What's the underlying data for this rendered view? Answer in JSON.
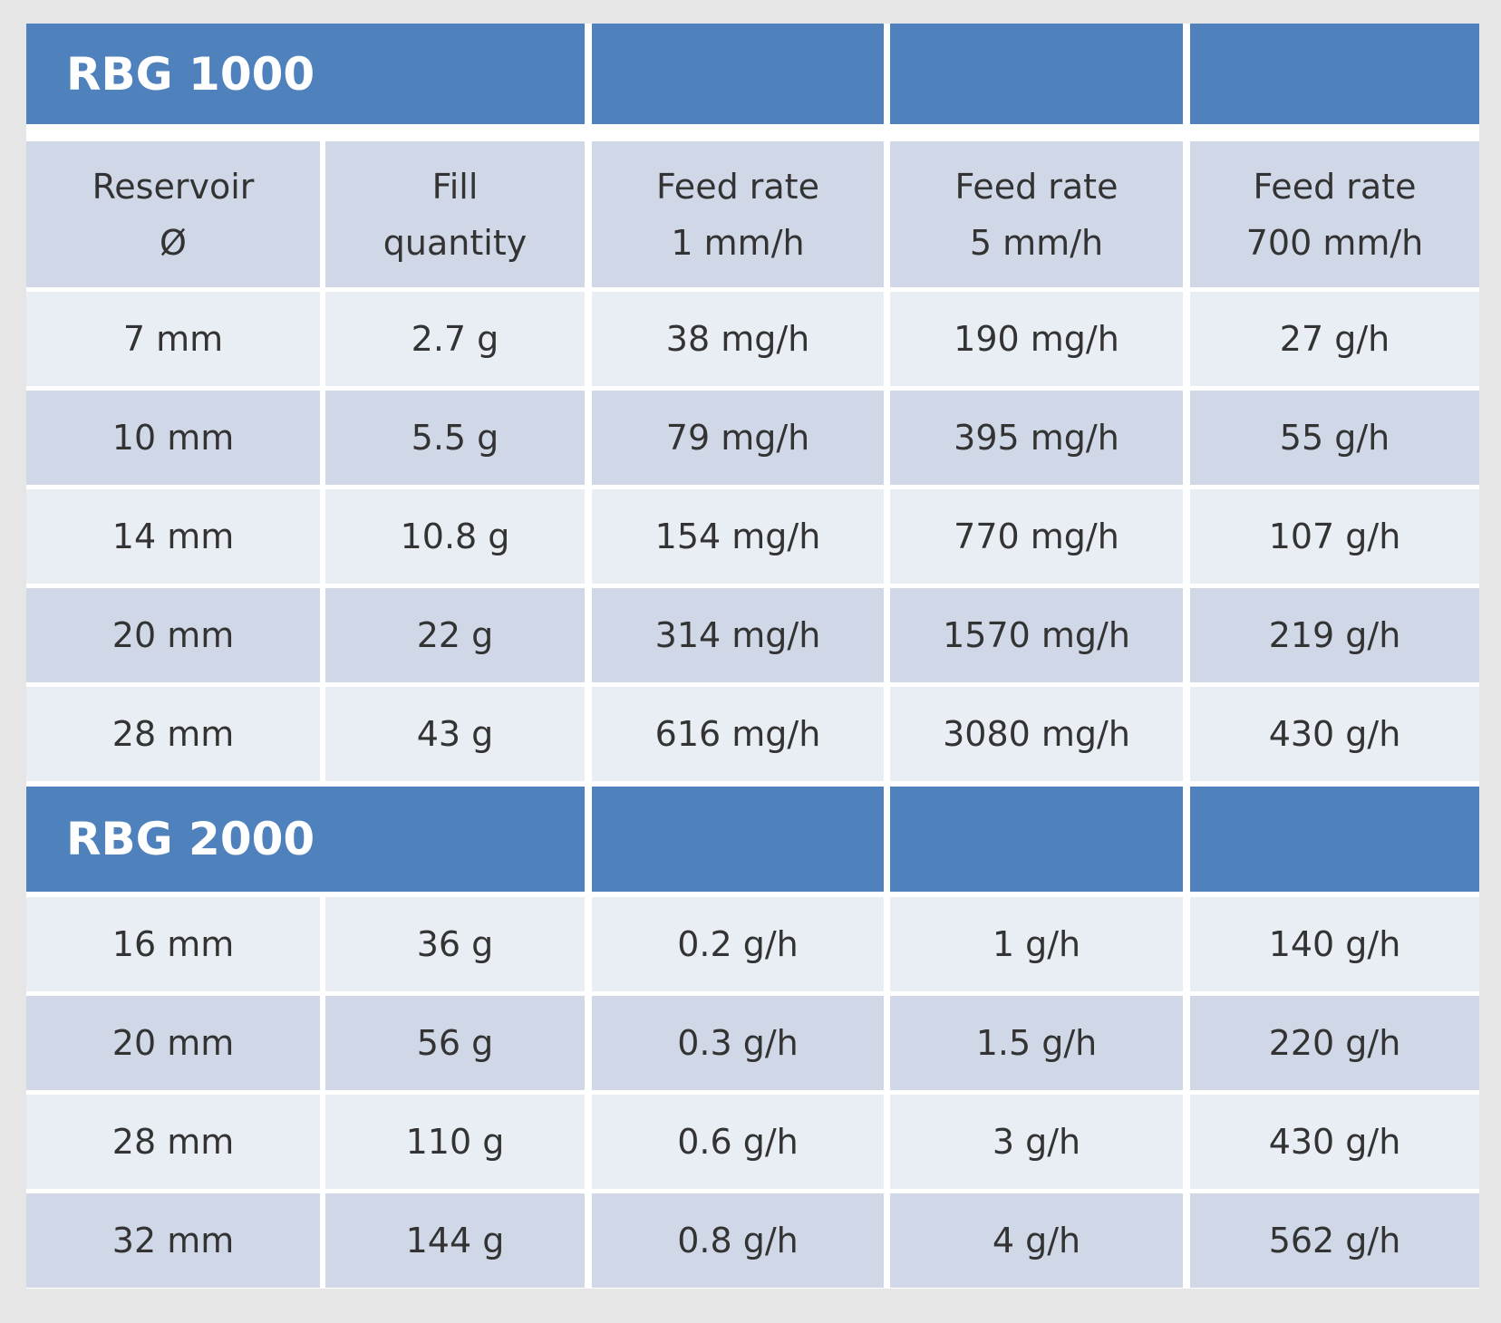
{
  "table": {
    "column_headers": [
      [
        "Reservoir",
        "Ø"
      ],
      [
        "Fill",
        "quantity"
      ],
      [
        "Feed rate",
        "1 mm/h"
      ],
      [
        "Feed rate",
        "5 mm/h"
      ],
      [
        "Feed rate",
        "700 mm/h"
      ]
    ],
    "sections": [
      {
        "title": "RBG 1000",
        "rows": [
          [
            "7 mm",
            "2.7 g",
            "38 mg/h",
            "190 mg/h",
            "27 g/h"
          ],
          [
            "10 mm",
            "5.5 g",
            "79 mg/h",
            "395 mg/h",
            "55 g/h"
          ],
          [
            "14 mm",
            "10.8 g",
            "154 mg/h",
            "770 mg/h",
            "107 g/h"
          ],
          [
            "20 mm",
            "22 g",
            "314 mg/h",
            "1570 mg/h",
            "219 g/h"
          ],
          [
            "28 mm",
            "43 g",
            "616 mg/h",
            "3080 mg/h",
            "430 g/h"
          ]
        ]
      },
      {
        "title": "RBG 2000",
        "rows": [
          [
            "16 mm",
            "36 g",
            "0.2 g/h",
            "1 g/h",
            "140 g/h"
          ],
          [
            "20 mm",
            "56 g",
            "0.3 g/h",
            "1.5 g/h",
            "220 g/h"
          ],
          [
            "28 mm",
            "110 g",
            "0.6 g/h",
            "3 g/h",
            "430 g/h"
          ],
          [
            "32 mm",
            "144 g",
            "0.8 g/h",
            "4 g/h",
            "562 g/h"
          ]
        ]
      }
    ]
  }
}
